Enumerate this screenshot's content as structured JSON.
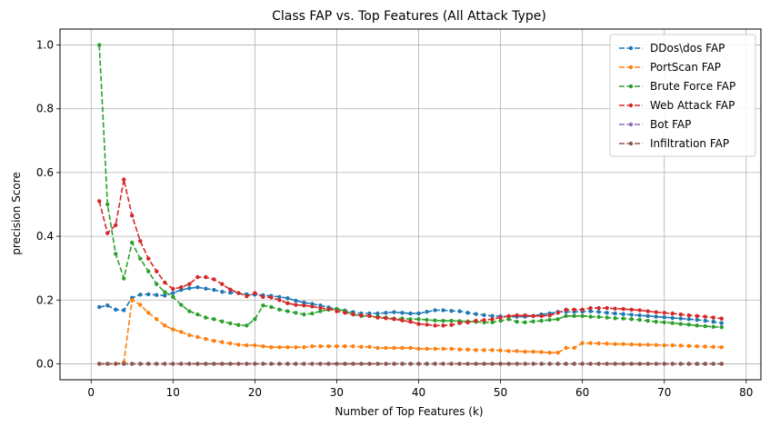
{
  "chart_data": {
    "type": "line",
    "title": "Class FAP vs. Top Features (All Attack Type)",
    "xlabel": "Number of Top Features (k)",
    "ylabel": "precision Score",
    "xlim": [
      -3.8,
      81.8
    ],
    "ylim": [
      -0.05,
      1.05
    ],
    "xticks": [
      0,
      10,
      20,
      30,
      40,
      50,
      60,
      70,
      80
    ],
    "yticks": [
      0.0,
      0.2,
      0.4,
      0.6,
      0.8,
      1.0
    ],
    "grid": true,
    "legend_position": "top-right",
    "x": [
      1,
      2,
      3,
      4,
      5,
      6,
      7,
      8,
      9,
      10,
      11,
      12,
      13,
      14,
      15,
      16,
      17,
      18,
      19,
      20,
      21,
      22,
      23,
      24,
      25,
      26,
      27,
      28,
      29,
      30,
      31,
      32,
      33,
      34,
      35,
      36,
      37,
      38,
      39,
      40,
      41,
      42,
      43,
      44,
      45,
      46,
      47,
      48,
      49,
      50,
      51,
      52,
      53,
      54,
      55,
      56,
      57,
      58,
      59,
      60,
      61,
      62,
      63,
      64,
      65,
      66,
      67,
      68,
      69,
      70,
      71,
      72,
      73,
      74,
      75,
      76,
      77
    ],
    "series": [
      {
        "name": "DDos\\dos FAP",
        "color": "#1f77b4",
        "values": [
          0.178,
          0.183,
          0.17,
          0.168,
          0.207,
          0.217,
          0.218,
          0.216,
          0.214,
          0.222,
          0.232,
          0.237,
          0.24,
          0.236,
          0.232,
          0.226,
          0.223,
          0.222,
          0.218,
          0.217,
          0.215,
          0.213,
          0.21,
          0.206,
          0.198,
          0.192,
          0.188,
          0.183,
          0.177,
          0.172,
          0.167,
          0.162,
          0.158,
          0.158,
          0.158,
          0.16,
          0.162,
          0.16,
          0.158,
          0.158,
          0.163,
          0.168,
          0.168,
          0.166,
          0.165,
          0.16,
          0.156,
          0.153,
          0.15,
          0.149,
          0.148,
          0.148,
          0.148,
          0.15,
          0.155,
          0.158,
          0.163,
          0.163,
          0.163,
          0.164,
          0.165,
          0.163,
          0.16,
          0.158,
          0.156,
          0.154,
          0.152,
          0.15,
          0.148,
          0.146,
          0.144,
          0.142,
          0.14,
          0.138,
          0.135,
          0.132,
          0.128
        ]
      },
      {
        "name": "PortScan FAP",
        "color": "#ff7f0e",
        "values": [
          0.0,
          0.0,
          0.0,
          0.005,
          0.2,
          0.185,
          0.16,
          0.14,
          0.12,
          0.108,
          0.1,
          0.09,
          0.084,
          0.078,
          0.072,
          0.068,
          0.064,
          0.06,
          0.058,
          0.058,
          0.055,
          0.052,
          0.052,
          0.052,
          0.052,
          0.052,
          0.055,
          0.055,
          0.055,
          0.055,
          0.055,
          0.055,
          0.053,
          0.053,
          0.05,
          0.05,
          0.05,
          0.05,
          0.05,
          0.047,
          0.047,
          0.047,
          0.047,
          0.047,
          0.045,
          0.045,
          0.043,
          0.043,
          0.043,
          0.042,
          0.04,
          0.04,
          0.038,
          0.038,
          0.037,
          0.035,
          0.035,
          0.05,
          0.05,
          0.065,
          0.065,
          0.064,
          0.063,
          0.062,
          0.062,
          0.061,
          0.06,
          0.06,
          0.059,
          0.058,
          0.058,
          0.057,
          0.056,
          0.055,
          0.054,
          0.053,
          0.052
        ]
      },
      {
        "name": "Brute Force FAP",
        "color": "#2ca02c",
        "values": [
          1.0,
          0.5,
          0.345,
          0.268,
          0.38,
          0.33,
          0.29,
          0.25,
          0.225,
          0.21,
          0.185,
          0.165,
          0.155,
          0.145,
          0.14,
          0.133,
          0.127,
          0.122,
          0.12,
          0.14,
          0.183,
          0.178,
          0.17,
          0.165,
          0.16,
          0.155,
          0.158,
          0.165,
          0.17,
          0.172,
          0.165,
          0.155,
          0.15,
          0.15,
          0.148,
          0.145,
          0.142,
          0.142,
          0.14,
          0.14,
          0.138,
          0.136,
          0.135,
          0.135,
          0.134,
          0.133,
          0.132,
          0.13,
          0.13,
          0.135,
          0.14,
          0.132,
          0.13,
          0.133,
          0.135,
          0.138,
          0.14,
          0.15,
          0.15,
          0.15,
          0.148,
          0.147,
          0.145,
          0.143,
          0.142,
          0.14,
          0.138,
          0.135,
          0.132,
          0.13,
          0.128,
          0.125,
          0.123,
          0.12,
          0.118,
          0.116,
          0.115
        ]
      },
      {
        "name": "Web Attack FAP",
        "color": "#d62728",
        "values": [
          0.51,
          0.41,
          0.435,
          0.578,
          0.465,
          0.385,
          0.33,
          0.29,
          0.255,
          0.235,
          0.24,
          0.25,
          0.272,
          0.272,
          0.265,
          0.25,
          0.233,
          0.222,
          0.212,
          0.222,
          0.21,
          0.208,
          0.2,
          0.19,
          0.185,
          0.183,
          0.18,
          0.175,
          0.172,
          0.165,
          0.16,
          0.155,
          0.152,
          0.15,
          0.145,
          0.143,
          0.14,
          0.136,
          0.132,
          0.125,
          0.123,
          0.12,
          0.12,
          0.122,
          0.128,
          0.13,
          0.135,
          0.137,
          0.14,
          0.145,
          0.15,
          0.152,
          0.152,
          0.15,
          0.15,
          0.152,
          0.16,
          0.17,
          0.17,
          0.17,
          0.175,
          0.175,
          0.175,
          0.173,
          0.172,
          0.17,
          0.168,
          0.165,
          0.162,
          0.16,
          0.158,
          0.155,
          0.152,
          0.15,
          0.148,
          0.145,
          0.142
        ]
      },
      {
        "name": "Bot FAP",
        "color": "#9467bd",
        "values": [
          0,
          0,
          0,
          0,
          0,
          0,
          0,
          0,
          0,
          0,
          0,
          0,
          0,
          0,
          0,
          0,
          0,
          0,
          0,
          0,
          0,
          0,
          0,
          0,
          0,
          0,
          0,
          0,
          0,
          0,
          0,
          0,
          0,
          0,
          0,
          0,
          0,
          0,
          0,
          0,
          0,
          0,
          0,
          0,
          0,
          0,
          0,
          0,
          0,
          0,
          0,
          0,
          0,
          0,
          0,
          0,
          0,
          0,
          0,
          0,
          0,
          0,
          0,
          0,
          0,
          0,
          0,
          0,
          0,
          0,
          0,
          0,
          0,
          0,
          0,
          0,
          0
        ]
      },
      {
        "name": "Infiltration FAP",
        "color": "#8c564b",
        "values": [
          0,
          0,
          0,
          0,
          0,
          0,
          0,
          0,
          0,
          0,
          0,
          0,
          0,
          0,
          0,
          0,
          0,
          0,
          0,
          0,
          0,
          0,
          0,
          0,
          0,
          0,
          0,
          0,
          0,
          0,
          0,
          0,
          0,
          0,
          0,
          0,
          0,
          0,
          0,
          0,
          0,
          0,
          0,
          0,
          0,
          0,
          0,
          0,
          0,
          0,
          0,
          0,
          0,
          0,
          0,
          0,
          0,
          0,
          0,
          0,
          0,
          0,
          0,
          0,
          0,
          0,
          0,
          0,
          0,
          0,
          0,
          0,
          0,
          0,
          0,
          0,
          0
        ]
      }
    ]
  }
}
